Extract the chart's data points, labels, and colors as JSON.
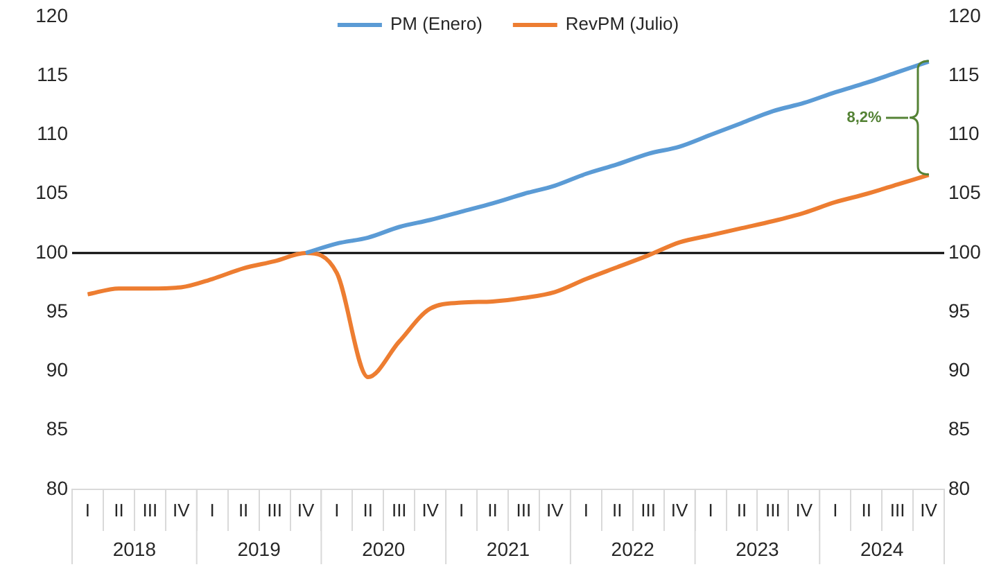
{
  "chart_data": {
    "type": "line",
    "categories": [
      "I",
      "II",
      "III",
      "IV",
      "I",
      "II",
      "III",
      "IV",
      "I",
      "II",
      "III",
      "IV",
      "I",
      "II",
      "III",
      "IV",
      "I",
      "II",
      "III",
      "IV",
      "I",
      "II",
      "III",
      "IV",
      "I",
      "II",
      "III",
      "IV"
    ],
    "series": [
      {
        "name": "PM (Enero)",
        "color": "#5b9bd5",
        "values": [
          null,
          null,
          null,
          null,
          null,
          null,
          null,
          100.0,
          100.8,
          101.3,
          102.2,
          102.8,
          103.5,
          104.2,
          105.0,
          105.7,
          106.7,
          107.5,
          108.4,
          109.0,
          110.0,
          111.0,
          112.0,
          112.7,
          113.6,
          114.4,
          115.3,
          116.2
        ]
      },
      {
        "name": "RevPM (Julio)",
        "color": "#ed7d31",
        "values": [
          96.5,
          97.0,
          97.0,
          97.1,
          97.8,
          98.7,
          99.3,
          100.0,
          98.3,
          89.5,
          92.5,
          95.3,
          95.8,
          95.9,
          96.2,
          96.7,
          97.8,
          98.8,
          99.8,
          100.9,
          101.5,
          102.1,
          102.7,
          103.4,
          104.3,
          105.0,
          105.8,
          106.6
        ]
      }
    ],
    "ylim": [
      80,
      120
    ],
    "yticks": [
      80,
      85,
      90,
      95,
      100,
      105,
      110,
      115,
      120
    ],
    "y2lim": [
      80,
      120
    ],
    "y2ticks": [
      80,
      85,
      90,
      95,
      100,
      105,
      110,
      115,
      120
    ],
    "ref_lines": [
      {
        "axis": "y",
        "value": 100,
        "color": "#000000"
      }
    ],
    "annotations": [
      "2018",
      "2019",
      "2020",
      "2021",
      "2022",
      "2023",
      "2024",
      "8,2%"
    ],
    "legend": "top",
    "grid": false,
    "marker": "none",
    "line_style": "solid"
  }
}
